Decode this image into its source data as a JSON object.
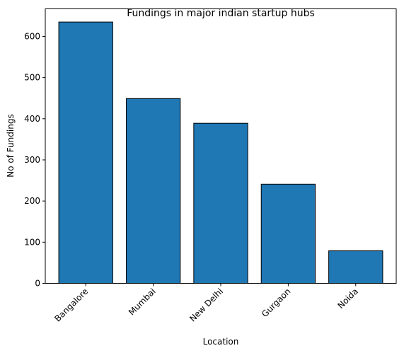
{
  "chart_data": {
    "type": "bar",
    "title": "Fundings in major indian startup hubs",
    "xlabel": "Location",
    "ylabel": "No of Fundings",
    "categories": [
      "Bangalore",
      "Mumbai",
      "New Delhi",
      "Gurgaon",
      "Noida"
    ],
    "values": [
      635,
      449,
      389,
      241,
      79
    ],
    "ylim": [
      0,
      667
    ],
    "yticks": [
      0,
      100,
      200,
      300,
      400,
      500,
      600
    ],
    "xtick_rotation": 45,
    "grid": false,
    "legend": "none",
    "colors": {
      "bar_fill": "#1f77b4",
      "bar_edge": "#000000",
      "axes": "#000000"
    }
  }
}
